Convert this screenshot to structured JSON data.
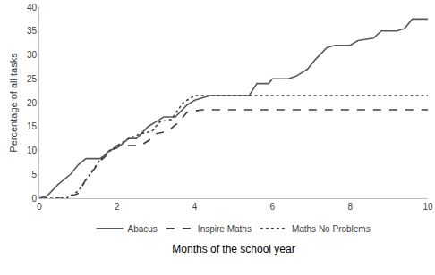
{
  "chart_data": {
    "type": "line",
    "x_label": "Months of the school year",
    "y_label": "Percentage of all tasks",
    "series": [
      {
        "name": "Abacus",
        "color": "#595959",
        "line_style": "solid",
        "x": [
          0,
          0.2,
          0.5,
          0.8,
          1.0,
          1.2,
          1.6,
          1.8,
          2.0,
          2.3,
          2.5,
          2.8,
          3.0,
          3.2,
          3.5,
          3.8,
          4.0,
          4.2,
          4.4,
          5.4,
          5.6,
          5.9,
          6.0,
          6.4,
          6.6,
          6.9,
          7.1,
          7.4,
          7.6,
          8.0,
          8.2,
          8.6,
          8.8,
          9.2,
          9.4,
          9.6,
          10
        ],
        "values": [
          0,
          0.5,
          3,
          5,
          7,
          8.3,
          8.3,
          10,
          10.5,
          12.5,
          12.5,
          15,
          16,
          17,
          17,
          19.5,
          20.5,
          21,
          21.5,
          21.5,
          24,
          24,
          25,
          25,
          25.5,
          27,
          29,
          31.5,
          32,
          32,
          33,
          33.5,
          35,
          35,
          35.5,
          37.5,
          37.5
        ]
      },
      {
        "name": "Inspire Maths",
        "color": "#404040",
        "line_style": "dash",
        "x": [
          0,
          0.7,
          1.0,
          1.2,
          1.6,
          2.0,
          2.6,
          2.8,
          3.0,
          3.3,
          3.6,
          3.8,
          4.2,
          10
        ],
        "values": [
          0,
          0,
          1,
          4,
          8,
          11,
          11,
          12,
          13.5,
          14,
          16,
          18,
          18.5,
          18.5
        ]
      },
      {
        "name": "Maths No Problems",
        "color": "#404040",
        "line_style": "dot",
        "x": [
          0,
          0.7,
          1.0,
          1.3,
          1.6,
          2.0,
          2.3,
          2.6,
          2.9,
          3.1,
          3.4,
          3.7,
          4.0,
          10
        ],
        "values": [
          0,
          0,
          1.5,
          5,
          8.5,
          11,
          12.5,
          13.5,
          14,
          16,
          16.5,
          20,
          21.5,
          21.5
        ]
      }
    ],
    "xlim": [
      0,
      10
    ],
    "xticks": [
      0,
      2,
      4,
      6,
      8,
      10
    ],
    "ylim": [
      0,
      40
    ],
    "yticks": [
      0,
      5,
      10,
      15,
      20,
      25,
      30,
      35,
      40
    ],
    "grid": false,
    "legend": "bottom"
  }
}
